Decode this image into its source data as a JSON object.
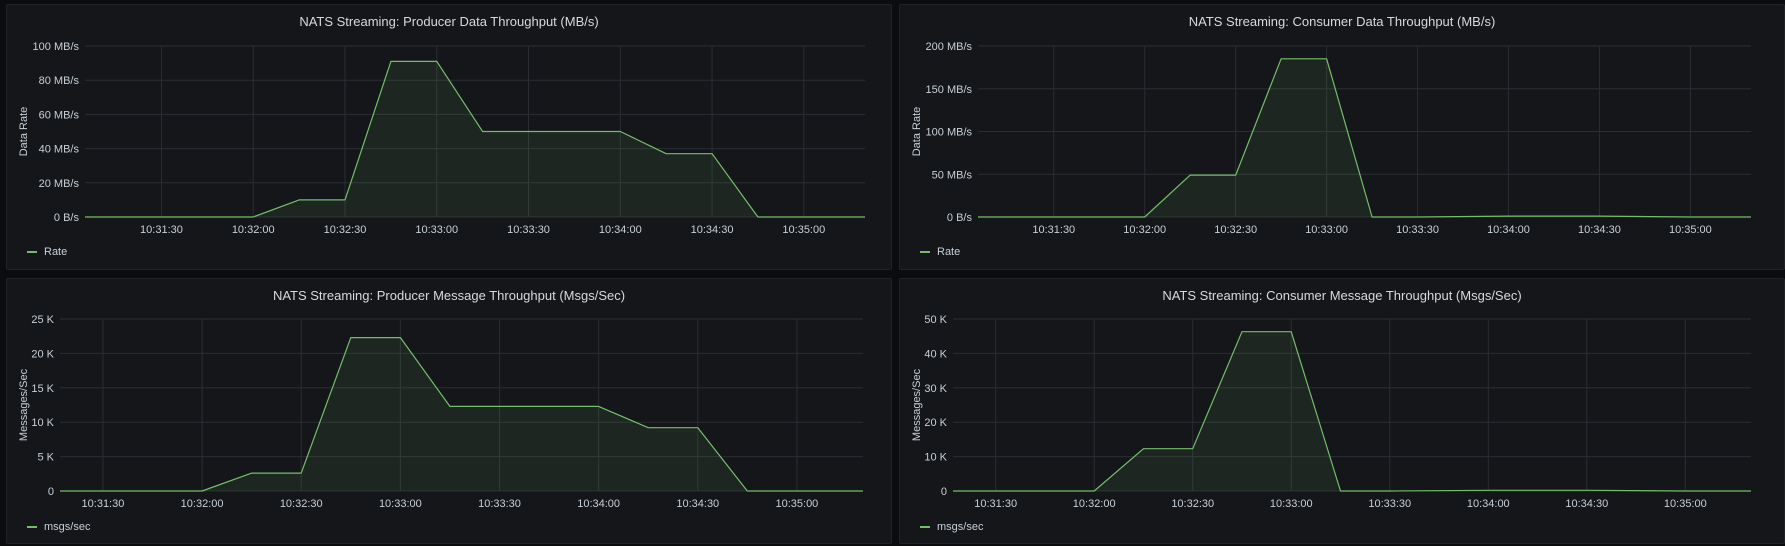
{
  "colors": {
    "series": "#73bf69",
    "grid": "#2a2d33"
  },
  "chart_data": [
    {
      "type": "area",
      "title": "NATS Streaming: Producer Data Throughput (MB/s)",
      "ylabel": "Data Rate",
      "x_ticks": [
        "10:31:30",
        "10:32:00",
        "10:32:30",
        "10:33:00",
        "10:33:30",
        "10:34:00",
        "10:34:30",
        "10:35:00"
      ],
      "x_range": [
        "10:31:05",
        "10:35:20"
      ],
      "ylim": [
        0,
        100
      ],
      "y_ticks": [
        {
          "value": 0,
          "label": "0 B/s"
        },
        {
          "value": 20,
          "label": "20 MB/s"
        },
        {
          "value": 40,
          "label": "40 MB/s"
        },
        {
          "value": 60,
          "label": "60 MB/s"
        },
        {
          "value": 80,
          "label": "80 MB/s"
        },
        {
          "value": 100,
          "label": "100 MB/s"
        }
      ],
      "series": [
        {
          "name": "Rate",
          "points": [
            [
              "10:31:05",
              0
            ],
            [
              "10:32:00",
              0
            ],
            [
              "10:32:15",
              10
            ],
            [
              "10:32:30",
              10
            ],
            [
              "10:32:45",
              91
            ],
            [
              "10:33:00",
              91
            ],
            [
              "10:33:15",
              50
            ],
            [
              "10:33:30",
              50
            ],
            [
              "10:33:45",
              50
            ],
            [
              "10:34:00",
              50
            ],
            [
              "10:34:15",
              37
            ],
            [
              "10:34:30",
              37
            ],
            [
              "10:34:45",
              0
            ],
            [
              "10:35:00",
              0
            ],
            [
              "10:35:20",
              0
            ]
          ]
        }
      ],
      "legend": "bottom-left"
    },
    {
      "type": "area",
      "title": "NATS Streaming: Consumer Data Throughput (MB/s)",
      "ylabel": "Data Rate",
      "x_ticks": [
        "10:31:30",
        "10:32:00",
        "10:32:30",
        "10:33:00",
        "10:33:30",
        "10:34:00",
        "10:34:30",
        "10:35:00"
      ],
      "x_range": [
        "10:31:05",
        "10:35:20"
      ],
      "ylim": [
        0,
        200
      ],
      "y_ticks": [
        {
          "value": 0,
          "label": "0 B/s"
        },
        {
          "value": 50,
          "label": "50 MB/s"
        },
        {
          "value": 100,
          "label": "100 MB/s"
        },
        {
          "value": 150,
          "label": "150 MB/s"
        },
        {
          "value": 200,
          "label": "200 MB/s"
        }
      ],
      "series": [
        {
          "name": "Rate",
          "points": [
            [
              "10:31:05",
              0
            ],
            [
              "10:32:00",
              0
            ],
            [
              "10:32:15",
              49
            ],
            [
              "10:32:30",
              49
            ],
            [
              "10:32:45",
              185
            ],
            [
              "10:33:00",
              185
            ],
            [
              "10:33:15",
              0
            ],
            [
              "10:33:30",
              0
            ],
            [
              "10:34:00",
              1
            ],
            [
              "10:34:30",
              1
            ],
            [
              "10:35:00",
              0
            ],
            [
              "10:35:20",
              0
            ]
          ]
        }
      ],
      "legend": "bottom-left"
    },
    {
      "type": "area",
      "title": "NATS Streaming: Producer Message Throughput (Msgs/Sec)",
      "ylabel": "Messages/Sec",
      "x_ticks": [
        "10:31:30",
        "10:32:00",
        "10:32:30",
        "10:33:00",
        "10:33:30",
        "10:34:00",
        "10:34:30",
        "10:35:00"
      ],
      "x_range": [
        "10:31:17",
        "10:35:20"
      ],
      "ylim": [
        0,
        25000
      ],
      "y_ticks": [
        {
          "value": 0,
          "label": "0"
        },
        {
          "value": 5000,
          "label": "5 K"
        },
        {
          "value": 10000,
          "label": "10 K"
        },
        {
          "value": 15000,
          "label": "15 K"
        },
        {
          "value": 20000,
          "label": "20 K"
        },
        {
          "value": 25000,
          "label": "25 K"
        }
      ],
      "series": [
        {
          "name": "msgs/sec",
          "points": [
            [
              "10:31:17",
              0
            ],
            [
              "10:32:00",
              0
            ],
            [
              "10:32:15",
              2600
            ],
            [
              "10:32:30",
              2600
            ],
            [
              "10:32:45",
              22300
            ],
            [
              "10:33:00",
              22300
            ],
            [
              "10:33:15",
              12300
            ],
            [
              "10:33:30",
              12300
            ],
            [
              "10:34:00",
              12300
            ],
            [
              "10:34:15",
              9200
            ],
            [
              "10:34:30",
              9200
            ],
            [
              "10:34:45",
              0
            ],
            [
              "10:35:00",
              0
            ],
            [
              "10:35:20",
              0
            ]
          ]
        }
      ],
      "legend": "bottom-left"
    },
    {
      "type": "area",
      "title": "NATS Streaming: Consumer Message Throughput (Msgs/Sec)",
      "ylabel": "Messages/Sec",
      "x_ticks": [
        "10:31:30",
        "10:32:00",
        "10:32:30",
        "10:33:00",
        "10:33:30",
        "10:34:00",
        "10:34:30",
        "10:35:00"
      ],
      "x_range": [
        "10:31:17",
        "10:35:20"
      ],
      "ylim": [
        0,
        50000
      ],
      "y_ticks": [
        {
          "value": 0,
          "label": "0"
        },
        {
          "value": 10000,
          "label": "10 K"
        },
        {
          "value": 20000,
          "label": "20 K"
        },
        {
          "value": 30000,
          "label": "30 K"
        },
        {
          "value": 40000,
          "label": "40 K"
        },
        {
          "value": 50000,
          "label": "50 K"
        }
      ],
      "series": [
        {
          "name": "msgs/sec",
          "points": [
            [
              "10:31:17",
              0
            ],
            [
              "10:32:00",
              0
            ],
            [
              "10:32:15",
              12300
            ],
            [
              "10:32:30",
              12300
            ],
            [
              "10:32:45",
              46300
            ],
            [
              "10:33:00",
              46300
            ],
            [
              "10:33:15",
              0
            ],
            [
              "10:33:30",
              0
            ],
            [
              "10:34:00",
              200
            ],
            [
              "10:34:30",
              200
            ],
            [
              "10:35:00",
              0
            ],
            [
              "10:35:20",
              0
            ]
          ]
        }
      ],
      "legend": "bottom-left"
    }
  ]
}
